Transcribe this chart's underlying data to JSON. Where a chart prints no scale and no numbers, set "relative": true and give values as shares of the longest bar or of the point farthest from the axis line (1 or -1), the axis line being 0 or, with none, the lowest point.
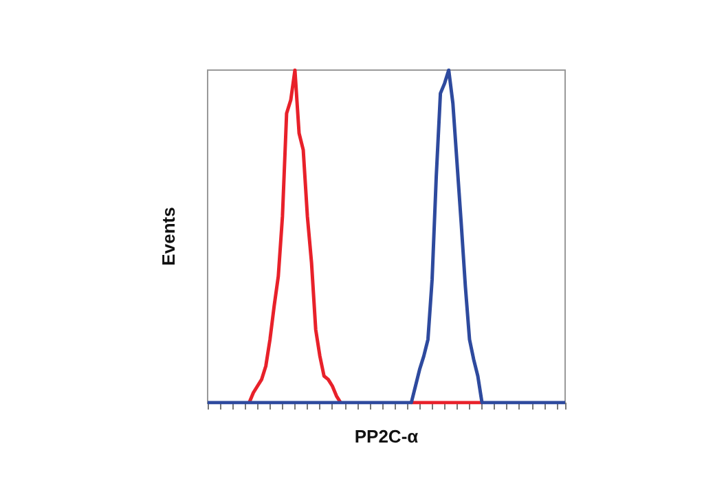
{
  "chart_data": {
    "type": "line",
    "xlabel": "PP2C-α",
    "ylabel": "Events",
    "relative": true,
    "grid": false,
    "line_style": "solid",
    "categories": [
      null,
      null,
      null,
      null,
      null,
      null,
      null,
      null,
      null,
      null,
      null,
      null,
      null,
      null,
      null,
      null,
      null,
      null,
      null,
      null,
      null,
      null,
      null,
      null,
      null,
      null,
      null,
      null,
      null,
      null,
      null,
      null,
      null,
      null,
      null,
      null,
      null,
      null,
      null,
      null,
      null,
      null,
      null,
      null,
      null,
      null,
      null,
      null,
      null,
      null,
      null,
      null,
      null,
      null,
      null,
      null,
      null,
      null,
      null,
      null,
      null,
      null,
      null,
      null,
      null,
      null,
      null,
      null,
      null,
      null,
      null,
      null,
      null,
      null,
      null,
      null,
      null,
      null,
      null,
      null,
      null,
      null,
      null,
      null,
      null,
      null,
      null
    ],
    "series": [
      {
        "color": "#e8212a",
        "values": [
          null,
          null,
          null,
          null,
          null,
          null,
          null,
          null,
          null,
          null,
          0,
          0.03,
          0.05,
          0.07,
          0.11,
          0.19,
          0.29,
          0.38,
          0.56,
          0.87,
          0.91,
          1,
          0.81,
          0.76,
          0.56,
          0.42,
          0.22,
          0.14,
          0.08,
          0.07,
          0.05,
          0.02,
          0,
          null,
          null,
          null,
          null,
          null,
          null,
          null,
          null,
          null,
          null,
          null,
          null,
          null,
          null,
          null,
          null,
          0,
          0,
          0,
          0,
          0,
          0,
          0,
          0,
          0,
          0,
          0,
          0,
          0,
          0,
          0,
          0,
          0,
          0,
          null,
          null,
          null,
          null,
          null,
          null,
          null,
          null,
          null,
          null,
          null,
          null,
          null,
          null,
          null,
          null,
          null,
          null,
          null,
          null
        ]
      },
      {
        "color": "#2e4a9e",
        "values": [
          0,
          0,
          0,
          0,
          0,
          0,
          0,
          0,
          0,
          0,
          0,
          0,
          0,
          0,
          0,
          0,
          0,
          0,
          0,
          0,
          0,
          0,
          0,
          0,
          0,
          0,
          0,
          0,
          0,
          0,
          0,
          0,
          0,
          0,
          0,
          0,
          0,
          0,
          0,
          0,
          0,
          0,
          0,
          0,
          0,
          0,
          0,
          0,
          0,
          0,
          0.05,
          0.1,
          0.14,
          0.19,
          0.37,
          0.68,
          0.93,
          0.96,
          1,
          0.9,
          0.72,
          0.54,
          0.35,
          0.19,
          0.13,
          0.08,
          0,
          0,
          0,
          0,
          0,
          0,
          0,
          0,
          0,
          0,
          0,
          0,
          0,
          0,
          0,
          0,
          0,
          0,
          0,
          0,
          0
        ]
      }
    ]
  }
}
